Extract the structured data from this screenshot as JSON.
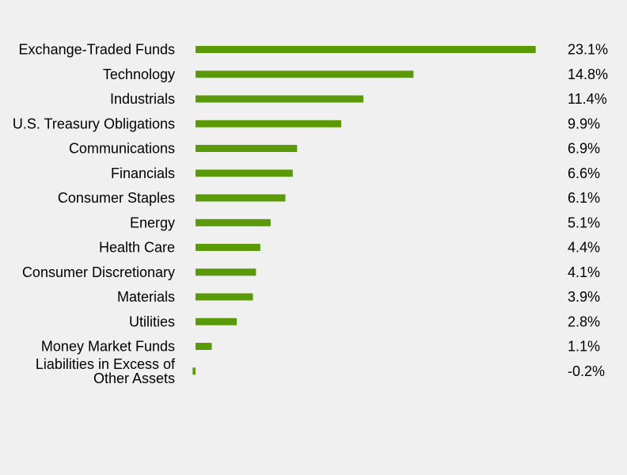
{
  "chart_data": {
    "type": "bar",
    "orientation": "horizontal",
    "categories": [
      "Exchange-Traded Funds",
      "Technology",
      "Industrials",
      "U.S. Treasury Obligations",
      "Communications",
      "Financials",
      "Consumer Staples",
      "Energy",
      "Health Care",
      "Consumer Discretionary",
      "Materials",
      "Utilities",
      "Money Market Funds",
      "Liabilities in Excess of Other Assets"
    ],
    "category_lines": [
      [
        "Exchange-Traded Funds"
      ],
      [
        "Technology"
      ],
      [
        "Industrials"
      ],
      [
        "U.S. Treasury Obligations"
      ],
      [
        "Communications"
      ],
      [
        "Financials"
      ],
      [
        "Consumer Staples"
      ],
      [
        "Energy"
      ],
      [
        "Health Care"
      ],
      [
        "Consumer Discretionary"
      ],
      [
        "Materials"
      ],
      [
        "Utilities"
      ],
      [
        "Money Market Funds"
      ],
      [
        "Liabilities in Excess of",
        "Other Assets"
      ]
    ],
    "values": [
      23.1,
      14.8,
      11.4,
      9.9,
      6.9,
      6.6,
      6.1,
      5.1,
      4.4,
      4.1,
      3.9,
      2.8,
      1.1,
      -0.2
    ],
    "value_labels": [
      "23.1%",
      "14.8%",
      "11.4%",
      "9.9%",
      "6.9%",
      "6.6%",
      "6.1%",
      "5.1%",
      "4.4%",
      "4.1%",
      "3.9%",
      "2.8%",
      "1.1%",
      "-0.2%"
    ],
    "bar_color": "#5a9a08",
    "background": "#f0f0f0",
    "grid": false,
    "legend": "none"
  }
}
